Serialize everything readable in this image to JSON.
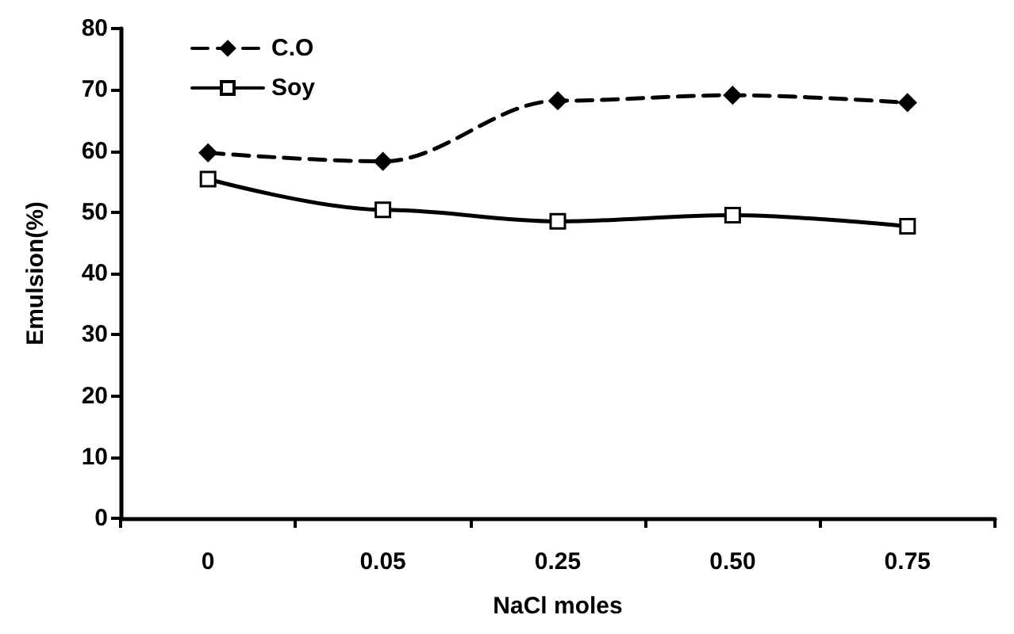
{
  "chart_data": {
    "type": "line",
    "xlabel": "NaCl moles",
    "ylabel": "Emulsion(%)",
    "categories": [
      "0",
      "0.05",
      "0.25",
      "0.50",
      "0.75"
    ],
    "series": [
      {
        "name": "C.O",
        "color": "#000000",
        "marker": "diamond",
        "line_style": "dashed",
        "values": [
          59.7,
          58.3,
          68.2,
          69.1,
          67.9
        ]
      },
      {
        "name": "Soy",
        "color": "#000000",
        "marker": "square",
        "line_style": "solid",
        "values": [
          55.4,
          50.4,
          48.5,
          49.5,
          47.7
        ]
      }
    ],
    "ylim": [
      0,
      80
    ],
    "yticks": [
      0,
      10,
      20,
      30,
      40,
      50,
      60,
      70,
      80
    ],
    "grid": false,
    "legend": "top left"
  }
}
